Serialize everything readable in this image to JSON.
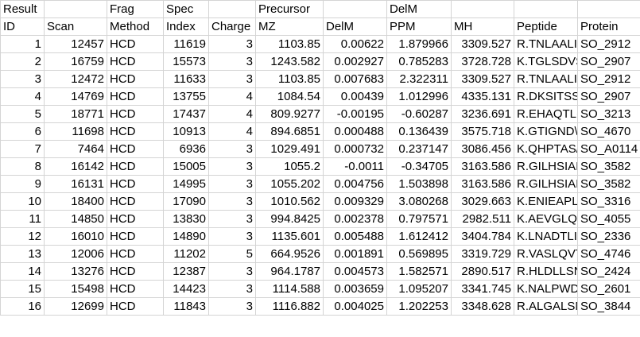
{
  "header_row1": [
    "Result",
    "",
    "Frag",
    "Spec",
    "",
    "Precursor",
    "",
    "DelM",
    "",
    "",
    ""
  ],
  "header_row2": [
    "ID",
    "Scan",
    "Method",
    "Index",
    "Charge",
    "MZ",
    "DelM",
    "PPM",
    "MH",
    "Peptide",
    "Protein"
  ],
  "rows": [
    [
      "1",
      "12457",
      "HCD",
      "11619",
      "3",
      "1103.85",
      "0.00622",
      "1.879966",
      "3309.527",
      "R.TNLAALI",
      "SO_2912"
    ],
    [
      "2",
      "16759",
      "HCD",
      "15573",
      "3",
      "1243.582",
      "0.002927",
      "0.785283",
      "3728.728",
      "K.TGLSDVS",
      "SO_2907"
    ],
    [
      "3",
      "12472",
      "HCD",
      "11633",
      "3",
      "1103.85",
      "0.007683",
      "2.322311",
      "3309.527",
      "R.TNLAALI",
      "SO_2912"
    ],
    [
      "4",
      "14769",
      "HCD",
      "13755",
      "4",
      "1084.54",
      "0.00439",
      "1.012996",
      "4335.131",
      "R.DKSITSST",
      "SO_2907"
    ],
    [
      "5",
      "18771",
      "HCD",
      "17437",
      "4",
      "809.9277",
      "-0.00195",
      "-0.60287",
      "3236.691",
      "R.EHAQTL(",
      "SO_3213"
    ],
    [
      "6",
      "11698",
      "HCD",
      "10913",
      "4",
      "894.6851",
      "0.000488",
      "0.136439",
      "3575.718",
      "K.GTIGND\\",
      "SO_4670"
    ],
    [
      "7",
      "7464",
      "HCD",
      "6936",
      "3",
      "1029.491",
      "0.000732",
      "0.237147",
      "3086.456",
      "K.QHPTAS/",
      "SO_A0114"
    ],
    [
      "8",
      "16142",
      "HCD",
      "15005",
      "3",
      "1055.2",
      "-0.0011",
      "-0.34705",
      "3163.586",
      "R.GILHSIAI",
      "SO_3582"
    ],
    [
      "9",
      "16131",
      "HCD",
      "14995",
      "3",
      "1055.202",
      "0.004756",
      "1.503898",
      "3163.586",
      "R.GILHSIAI",
      "SO_3582"
    ],
    [
      "10",
      "18400",
      "HCD",
      "17090",
      "3",
      "1010.562",
      "0.009329",
      "3.080268",
      "3029.663",
      "K.ENIEAPL",
      "SO_3316"
    ],
    [
      "11",
      "14850",
      "HCD",
      "13830",
      "3",
      "994.8425",
      "0.002378",
      "0.797571",
      "2982.511",
      "K.AEVGLQ\\",
      "SO_4055"
    ],
    [
      "12",
      "16010",
      "HCD",
      "14890",
      "3",
      "1135.601",
      "0.005488",
      "1.612412",
      "3404.784",
      "K.LNADTLI",
      "SO_2336"
    ],
    [
      "13",
      "12006",
      "HCD",
      "11202",
      "5",
      "664.9526",
      "0.001891",
      "0.569895",
      "3319.729",
      "R.VASLQVT",
      "SO_4746"
    ],
    [
      "14",
      "13276",
      "HCD",
      "12387",
      "3",
      "964.1787",
      "0.004573",
      "1.582571",
      "2890.517",
      "R.HLDLLSN",
      "SO_2424"
    ],
    [
      "15",
      "15498",
      "HCD",
      "14423",
      "3",
      "1114.588",
      "0.003659",
      "1.095207",
      "3341.745",
      "K.NALPWD",
      "SO_2601"
    ],
    [
      "16",
      "12699",
      "HCD",
      "11843",
      "3",
      "1116.882",
      "0.004025",
      "1.202253",
      "3348.628",
      "R.ALGALSN",
      "SO_3844"
    ]
  ]
}
